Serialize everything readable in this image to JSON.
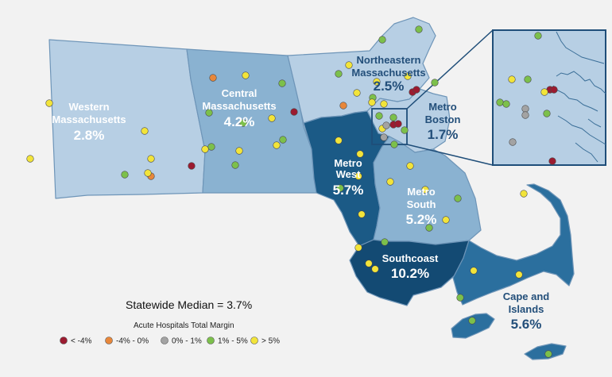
{
  "colors": {
    "background": "#f2f2f2",
    "region_light": "#b7cfe4",
    "region_mid": "#8ab2d1",
    "region_dark": "#2b6f9e",
    "region_darker": "#1b5a86",
    "region_darkest": "#134a73",
    "border": "#6e95b8",
    "text_dark": "#234f7a"
  },
  "regions": [
    {
      "id": "western",
      "label_lines": [
        "Western",
        "Massachusetts"
      ],
      "value": "2.8%"
    },
    {
      "id": "central",
      "label_lines": [
        "Central",
        "Massachusetts"
      ],
      "value": "4.2%"
    },
    {
      "id": "northeastern",
      "label_lines": [
        "Northeastern",
        "Massachusetts"
      ],
      "value": "2.5%"
    },
    {
      "id": "metro-boston",
      "label_lines": [
        "Metro",
        "Boston"
      ],
      "value": "1.7%"
    },
    {
      "id": "metro-west",
      "label_lines": [
        "Metro",
        "West"
      ],
      "value": "5.7%"
    },
    {
      "id": "metro-south",
      "label_lines": [
        "Metro",
        "South"
      ],
      "value": "5.2%"
    },
    {
      "id": "southcoast",
      "label_lines": [
        "Southcoast"
      ],
      "value": "10.2%"
    },
    {
      "id": "cape-islands",
      "label_lines": [
        "Cape and",
        "Islands"
      ],
      "value": "5.6%"
    }
  ],
  "statewide_median": "Statewide Median = 3.7%",
  "legend": {
    "title": "Acute Hospitals Total Margin",
    "items": [
      {
        "label": "< -4%",
        "color": "#9b1b30"
      },
      {
        "label": "-4% - 0%",
        "color": "#e8873a"
      },
      {
        "label": "0% - 1%",
        "color": "#a3a3a3"
      },
      {
        "label": "1% - 5%",
        "color": "#7cc04b"
      },
      {
        "label": "> 5%",
        "color": "#f2e43a"
      }
    ]
  },
  "hospitals": [
    {
      "region": "western",
      "category": "> 5%"
    },
    {
      "region": "western",
      "category": "> 5%"
    },
    {
      "region": "western",
      "category": "> 5%"
    },
    {
      "region": "western",
      "category": "> 5%"
    },
    {
      "region": "western",
      "category": "1% - 5%"
    },
    {
      "region": "western",
      "category": "-4% - 0%"
    },
    {
      "region": "western",
      "category": "> 5%"
    },
    {
      "region": "western",
      "category": "< -4%"
    },
    {
      "region": "central",
      "category": "-4% - 0%"
    },
    {
      "region": "central",
      "category": "> 5%"
    },
    {
      "region": "central",
      "category": "1% - 5%"
    },
    {
      "region": "central",
      "category": "1% - 5%"
    },
    {
      "region": "central",
      "category": "> 5%"
    },
    {
      "region": "central",
      "category": "1% - 5%"
    },
    {
      "region": "central",
      "category": "1% - 5%"
    },
    {
      "region": "central",
      "category": "< -4%"
    },
    {
      "region": "central",
      "category": "> 5%"
    },
    {
      "region": "central",
      "category": "> 5%"
    },
    {
      "region": "central",
      "category": "1% - 5%"
    },
    {
      "region": "central",
      "category": "1% - 5%"
    },
    {
      "region": "central",
      "category": "> 5%"
    },
    {
      "region": "northeastern",
      "category": "1% - 5%"
    },
    {
      "region": "northeastern",
      "category": "1% - 5%"
    },
    {
      "region": "northeastern",
      "category": "> 5%"
    },
    {
      "region": "northeastern",
      "category": "1% - 5%"
    },
    {
      "region": "northeastern",
      "category": "> 5%"
    },
    {
      "region": "northeastern",
      "category": "-4% - 0%"
    },
    {
      "region": "northeastern",
      "category": "< -4%"
    },
    {
      "region": "northeastern",
      "category": "< -4%"
    },
    {
      "region": "northeastern",
      "category": "1% - 5%"
    },
    {
      "region": "northeastern",
      "category": "> 5%"
    },
    {
      "region": "northeastern",
      "category": "> 5%"
    },
    {
      "region": "northeastern",
      "category": "> 5%"
    },
    {
      "region": "northeastern",
      "category": "1% - 5%"
    },
    {
      "region": "metro-boston",
      "category": "> 5%"
    },
    {
      "region": "metro-boston",
      "category": "1% - 5%"
    },
    {
      "region": "metro-boston",
      "category": "< -4%"
    },
    {
      "region": "metro-boston",
      "category": "0% - 1%"
    },
    {
      "region": "metro-boston",
      "category": "1% - 5%"
    },
    {
      "region": "metro-boston",
      "category": "< -4%"
    },
    {
      "region": "metro-boston",
      "category": "> 5%"
    },
    {
      "region": "metro-boston",
      "category": "1% - 5%"
    },
    {
      "region": "metro-boston",
      "category": "0% - 1%"
    },
    {
      "region": "metro-boston",
      "category": "1% - 5%"
    },
    {
      "region": "metro-west",
      "category": "> 5%"
    },
    {
      "region": "metro-west",
      "category": "> 5%"
    },
    {
      "region": "metro-west",
      "category": "> 5%"
    },
    {
      "region": "metro-west",
      "category": "1% - 5%"
    },
    {
      "region": "metro-west",
      "category": "> 5%"
    },
    {
      "region": "metro-south",
      "category": "> 5%"
    },
    {
      "region": "metro-south",
      "category": "> 5%"
    },
    {
      "region": "metro-south",
      "category": "> 5%"
    },
    {
      "region": "metro-south",
      "category": "1% - 5%"
    },
    {
      "region": "metro-south",
      "category": "> 5%"
    },
    {
      "region": "metro-south",
      "category": "1% - 5%"
    },
    {
      "region": "southcoast",
      "category": "1% - 5%"
    },
    {
      "region": "southcoast",
      "category": "> 5%"
    },
    {
      "region": "southcoast",
      "category": "> 5%"
    },
    {
      "region": "southcoast",
      "category": "> 5%"
    },
    {
      "region": "cape-islands",
      "category": "> 5%"
    },
    {
      "region": "cape-islands",
      "category": "> 5%"
    },
    {
      "region": "cape-islands",
      "category": "> 5%"
    },
    {
      "region": "cape-islands",
      "category": "1% - 5%"
    },
    {
      "region": "cape-islands",
      "category": "1% - 5%"
    },
    {
      "region": "cape-islands",
      "category": "1% - 5%"
    },
    {
      "region": "inset",
      "category": "1% - 5%"
    },
    {
      "region": "inset",
      "category": "> 5%"
    },
    {
      "region": "inset",
      "category": "1% - 5%"
    },
    {
      "region": "inset",
      "category": "< -4%"
    },
    {
      "region": "inset",
      "category": "< -4%"
    },
    {
      "region": "inset",
      "category": "1% - 5%"
    },
    {
      "region": "inset",
      "category": "1% - 5%"
    },
    {
      "region": "inset",
      "category": "0% - 1%"
    },
    {
      "region": "inset",
      "category": "0% - 1%"
    },
    {
      "region": "inset",
      "category": "1% - 5%"
    },
    {
      "region": "inset",
      "category": "0% - 1%"
    },
    {
      "region": "inset",
      "category": "< -4%"
    },
    {
      "region": "inset",
      "category": "> 5%"
    }
  ]
}
